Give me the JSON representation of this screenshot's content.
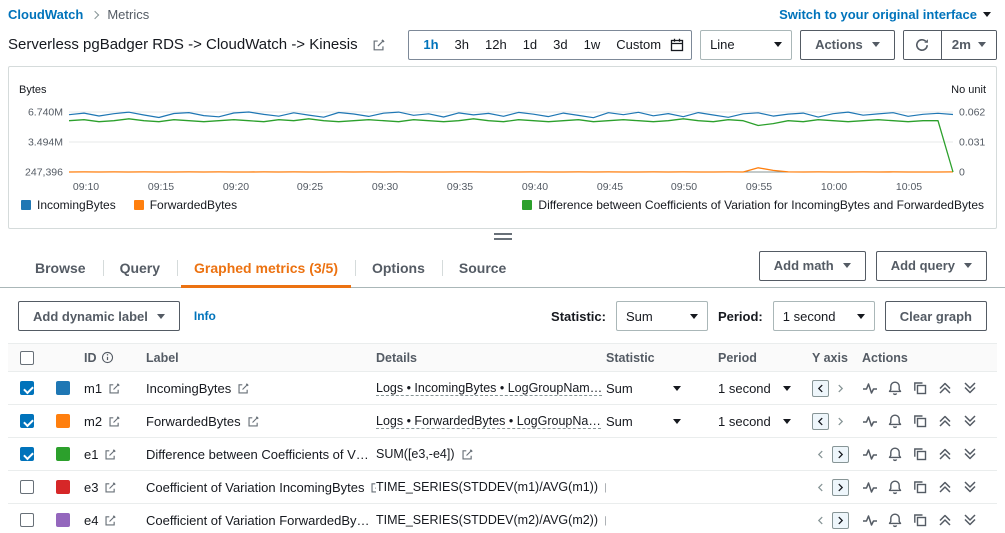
{
  "colors": {
    "accent_orange": "#ec7211",
    "link_blue": "#0073bb"
  },
  "breadcrumb": {
    "root": "CloudWatch",
    "current": "Metrics"
  },
  "header": {
    "switch_link": "Switch to your original interface"
  },
  "toolbar": {
    "title": "Serverless pgBadger RDS -> CloudWatch -> Kinesis",
    "time_ranges": [
      "1h",
      "3h",
      "12h",
      "1d",
      "3d",
      "1w",
      "Custom"
    ],
    "selected_range": "1h",
    "chart_type": "Line",
    "actions_label": "Actions",
    "refresh_interval": "2m"
  },
  "chart_data": {
    "type": "line",
    "x_ticks": [
      "09:10",
      "09:15",
      "09:20",
      "09:25",
      "09:30",
      "09:35",
      "09:40",
      "09:45",
      "09:50",
      "09:55",
      "10:00",
      "10:05"
    ],
    "left_axis": {
      "label": "Bytes",
      "ticks": [
        "6.740M",
        "3.494M",
        "247,396"
      ],
      "min": 247396,
      "max": 6740000
    },
    "right_axis": {
      "label": "No unit",
      "ticks": [
        "0.062",
        "0.031",
        "0"
      ],
      "min": 0,
      "max": 0.062
    },
    "grid": "horizontal",
    "legend_position": "bottom",
    "series": [
      {
        "name": "IncomingBytes",
        "color": "#1f77b4",
        "axis": "left",
        "values": [
          6450000,
          6620000,
          6310000,
          6560000,
          6720000,
          6420000,
          6150000,
          6580000,
          6680000,
          6350000,
          6220000,
          6630000,
          6740000,
          6480000,
          6290000,
          6650000,
          6400000,
          6180000,
          6690000,
          6520000,
          6260000,
          6610000,
          6730000,
          6380000,
          6550000,
          6200000,
          6640000,
          6430000,
          6590000,
          6280000,
          6700000,
          6500000,
          6240000,
          6620000,
          6370000,
          6120000,
          6660000,
          6450000,
          6710000,
          6330000,
          6570000,
          6230000,
          6680000,
          6410000,
          6170000,
          6540000,
          6650000,
          6300000,
          6510000,
          6620000,
          6190000,
          6560000,
          6730000,
          6390000,
          6530000,
          6660000,
          6270000,
          6490000,
          6600000,
          6470000
        ]
      },
      {
        "name": "ForwardedBytes",
        "color": "#ff7f0e",
        "axis": "left",
        "values": [
          252000,
          255000,
          250000,
          253000,
          251000,
          254000,
          252000,
          250000,
          253000,
          251000,
          255000,
          252000,
          250000,
          254000,
          251000,
          253000,
          252000,
          250000,
          255000,
          251000,
          253000,
          252000,
          254000,
          250000,
          252000,
          251000,
          253000,
          255000,
          250000,
          252000,
          251000,
          254000,
          252000,
          250000,
          253000,
          251000,
          255000,
          252000,
          250000,
          253000,
          252000,
          254000,
          251000,
          250000,
          253000,
          252000,
          700000,
          420000,
          255000,
          251000,
          253000,
          250000,
          252000,
          254000,
          251000,
          253000,
          250000,
          252000,
          251000,
          253000
        ]
      },
      {
        "name": "Difference between Coefficients of Variation for IncomingBytes and ForwardedBytes",
        "color": "#2ca02c",
        "axis": "right",
        "values": [
          0.053,
          0.054,
          0.052,
          0.053,
          0.055,
          0.053,
          0.052,
          0.054,
          0.053,
          0.052,
          0.053,
          0.054,
          0.053,
          0.052,
          0.054,
          0.053,
          0.055,
          0.053,
          0.052,
          0.053,
          0.054,
          0.053,
          0.052,
          0.054,
          0.053,
          0.052,
          0.053,
          0.055,
          0.053,
          0.052,
          0.054,
          0.053,
          0.052,
          0.053,
          0.054,
          0.052,
          0.053,
          0.054,
          0.053,
          0.052,
          0.053,
          0.055,
          0.053,
          0.052,
          0.054,
          0.053,
          0.048,
          0.05,
          0.053,
          0.052,
          0.054,
          0.053,
          0.052,
          0.053,
          0.054,
          0.053,
          0.052,
          0.053,
          0.053,
          0
        ]
      }
    ]
  },
  "tabs": {
    "items": [
      "Browse",
      "Query",
      "Graphed metrics (3/5)",
      "Options",
      "Source"
    ],
    "active": "Graphed metrics (3/5)",
    "add_math": "Add math",
    "add_query": "Add query"
  },
  "controls": {
    "add_dynamic_label": "Add dynamic label",
    "info": "Info",
    "statistic_label": "Statistic:",
    "statistic_value": "Sum",
    "period_label": "Period:",
    "period_value": "1 second",
    "clear_graph": "Clear graph"
  },
  "table": {
    "headers": {
      "id": "ID",
      "label": "Label",
      "details": "Details",
      "statistic": "Statistic",
      "period": "Period",
      "y_axis": "Y axis",
      "actions": "Actions"
    },
    "rows": [
      {
        "checked": true,
        "color": "#1f77b4",
        "id": "m1",
        "label": "IncomingBytes",
        "details": "Logs • IncomingBytes • LogGroupNam…",
        "statistic": "Sum",
        "period": "1 second",
        "y_axis": "left"
      },
      {
        "checked": true,
        "color": "#ff7f0e",
        "id": "m2",
        "label": "ForwardedBytes",
        "details": "Logs • ForwardedBytes • LogGroupNa…",
        "statistic": "Sum",
        "period": "1 second",
        "y_axis": "left"
      },
      {
        "checked": true,
        "color": "#2ca02c",
        "id": "e1",
        "label": "Difference between Coefficients of V…",
        "details": "SUM([e3,-e4])",
        "y_axis": "right"
      },
      {
        "checked": false,
        "color": "#d62728",
        "id": "e3",
        "label": "Coefficient of Variation IncomingBytes",
        "details": "TIME_SERIES(STDDEV(m1)/AVG(m1))",
        "y_axis": "right"
      },
      {
        "checked": false,
        "color": "#9467bd",
        "id": "e4",
        "label": "Coefficient of Variation ForwardedBy…",
        "details": "TIME_SERIES(STDDEV(m2)/AVG(m2))",
        "y_axis": "right"
      }
    ]
  }
}
